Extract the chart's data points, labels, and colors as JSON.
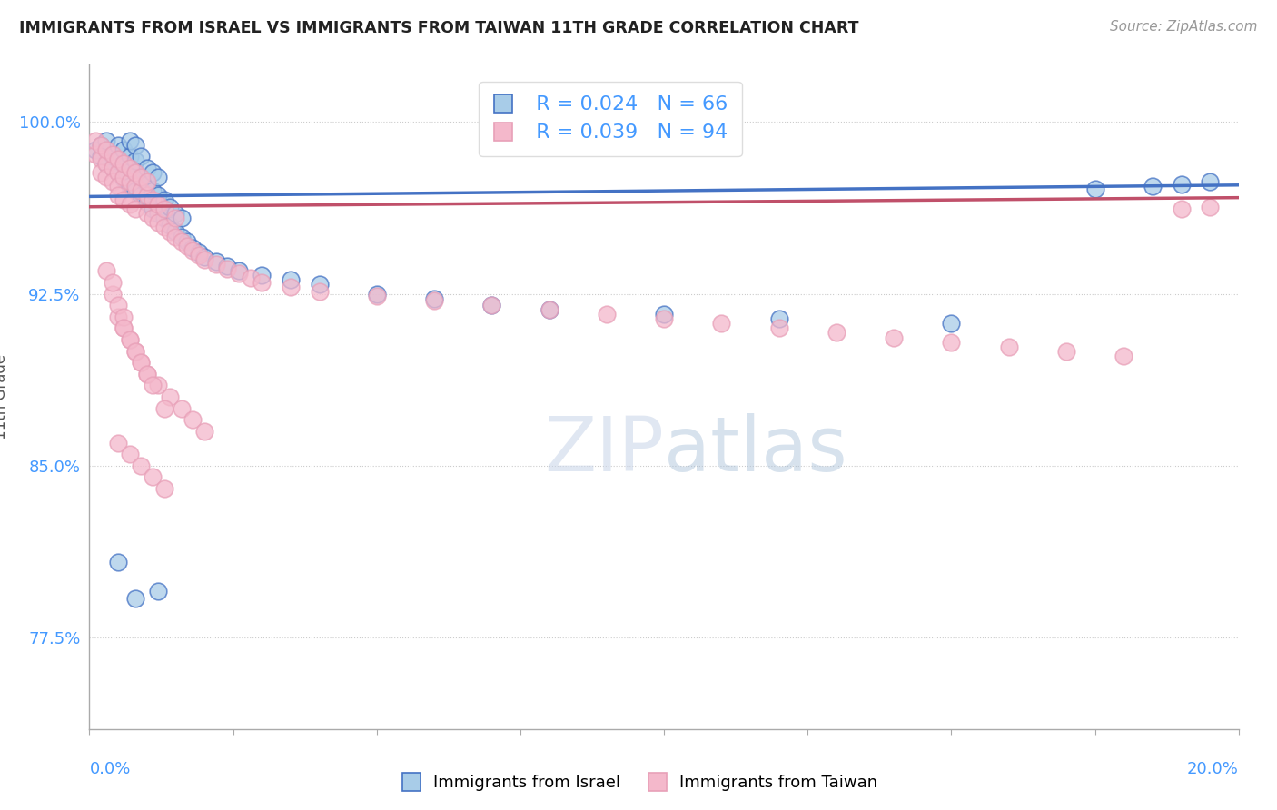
{
  "title": "IMMIGRANTS FROM ISRAEL VS IMMIGRANTS FROM TAIWAN 11TH GRADE CORRELATION CHART",
  "source": "Source: ZipAtlas.com",
  "ylabel": "11th Grade",
  "xmin": 0.0,
  "xmax": 0.2,
  "ymin": 0.735,
  "ymax": 1.025,
  "yticks": [
    1.0,
    0.925,
    0.85,
    0.775
  ],
  "ytick_labels": [
    "100.0%",
    "92.5%",
    "85.0%",
    "77.5%"
  ],
  "legend_r_israel": "R = 0.024",
  "legend_n_israel": "N = 66",
  "legend_r_taiwan": "R = 0.039",
  "legend_n_taiwan": "N = 94",
  "color_israel": "#a8cce8",
  "color_taiwan": "#f4b8cb",
  "color_israel_line": "#4472c4",
  "color_taiwan_line": "#c0506a",
  "color_title": "#222222",
  "color_source": "#999999",
  "color_axis_label": "#4499ff",
  "color_legend_text": "#4499ff",
  "israel_x": [
    0.001,
    0.002,
    0.002,
    0.003,
    0.003,
    0.003,
    0.004,
    0.004,
    0.005,
    0.005,
    0.005,
    0.006,
    0.006,
    0.006,
    0.007,
    0.007,
    0.007,
    0.007,
    0.008,
    0.008,
    0.008,
    0.008,
    0.009,
    0.009,
    0.009,
    0.01,
    0.01,
    0.01,
    0.011,
    0.011,
    0.011,
    0.012,
    0.012,
    0.012,
    0.013,
    0.013,
    0.014,
    0.014,
    0.015,
    0.015,
    0.016,
    0.016,
    0.017,
    0.018,
    0.019,
    0.02,
    0.022,
    0.024,
    0.026,
    0.03,
    0.035,
    0.04,
    0.05,
    0.06,
    0.07,
    0.08,
    0.1,
    0.12,
    0.15,
    0.175,
    0.185,
    0.19,
    0.195,
    0.005,
    0.008,
    0.012
  ],
  "israel_y": [
    0.988,
    0.99,
    0.985,
    0.982,
    0.988,
    0.992,
    0.98,
    0.985,
    0.978,
    0.983,
    0.99,
    0.975,
    0.982,
    0.988,
    0.972,
    0.98,
    0.985,
    0.992,
    0.97,
    0.978,
    0.983,
    0.99,
    0.968,
    0.975,
    0.985,
    0.965,
    0.973,
    0.98,
    0.962,
    0.97,
    0.978,
    0.96,
    0.968,
    0.976,
    0.958,
    0.966,
    0.955,
    0.963,
    0.952,
    0.96,
    0.95,
    0.958,
    0.948,
    0.945,
    0.943,
    0.941,
    0.939,
    0.937,
    0.935,
    0.933,
    0.931,
    0.929,
    0.925,
    0.923,
    0.92,
    0.918,
    0.916,
    0.914,
    0.912,
    0.971,
    0.972,
    0.973,
    0.974,
    0.808,
    0.792,
    0.795
  ],
  "taiwan_x": [
    0.001,
    0.001,
    0.002,
    0.002,
    0.002,
    0.003,
    0.003,
    0.003,
    0.004,
    0.004,
    0.004,
    0.005,
    0.005,
    0.005,
    0.005,
    0.006,
    0.006,
    0.006,
    0.007,
    0.007,
    0.007,
    0.008,
    0.008,
    0.008,
    0.009,
    0.009,
    0.01,
    0.01,
    0.01,
    0.011,
    0.011,
    0.012,
    0.012,
    0.013,
    0.013,
    0.014,
    0.015,
    0.015,
    0.016,
    0.017,
    0.018,
    0.019,
    0.02,
    0.022,
    0.024,
    0.026,
    0.028,
    0.03,
    0.035,
    0.04,
    0.05,
    0.06,
    0.07,
    0.08,
    0.09,
    0.1,
    0.11,
    0.12,
    0.13,
    0.14,
    0.15,
    0.16,
    0.17,
    0.18,
    0.19,
    0.195,
    0.005,
    0.006,
    0.007,
    0.008,
    0.009,
    0.01,
    0.012,
    0.014,
    0.016,
    0.018,
    0.02,
    0.003,
    0.004,
    0.004,
    0.005,
    0.006,
    0.006,
    0.007,
    0.008,
    0.009,
    0.01,
    0.011,
    0.013,
    0.005,
    0.007,
    0.009,
    0.011,
    0.013
  ],
  "taiwan_y": [
    0.986,
    0.992,
    0.984,
    0.99,
    0.978,
    0.982,
    0.988,
    0.976,
    0.98,
    0.986,
    0.974,
    0.978,
    0.984,
    0.972,
    0.968,
    0.976,
    0.982,
    0.966,
    0.974,
    0.98,
    0.964,
    0.972,
    0.978,
    0.962,
    0.97,
    0.976,
    0.96,
    0.968,
    0.974,
    0.958,
    0.966,
    0.956,
    0.964,
    0.954,
    0.962,
    0.952,
    0.95,
    0.958,
    0.948,
    0.946,
    0.944,
    0.942,
    0.94,
    0.938,
    0.936,
    0.934,
    0.932,
    0.93,
    0.928,
    0.926,
    0.924,
    0.922,
    0.92,
    0.918,
    0.916,
    0.914,
    0.912,
    0.91,
    0.908,
    0.906,
    0.904,
    0.902,
    0.9,
    0.898,
    0.962,
    0.963,
    0.915,
    0.91,
    0.905,
    0.9,
    0.895,
    0.89,
    0.885,
    0.88,
    0.875,
    0.87,
    0.865,
    0.935,
    0.925,
    0.93,
    0.92,
    0.915,
    0.91,
    0.905,
    0.9,
    0.895,
    0.89,
    0.885,
    0.875,
    0.86,
    0.855,
    0.85,
    0.845,
    0.84
  ]
}
